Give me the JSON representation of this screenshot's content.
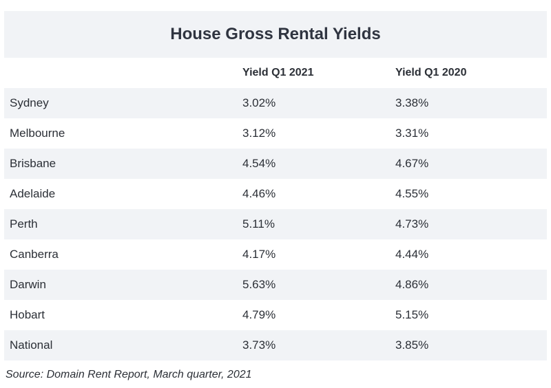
{
  "chart_data": {
    "type": "table",
    "title": "House Gross Rental Yields",
    "columns": [
      "",
      "Yield Q1 2021",
      "Yield Q1 2020"
    ],
    "rows": [
      {
        "city": "Sydney",
        "q1_2021": "3.02%",
        "q1_2020": "3.38%"
      },
      {
        "city": "Melbourne",
        "q1_2021": "3.12%",
        "q1_2020": "3.31%"
      },
      {
        "city": "Brisbane",
        "q1_2021": "4.54%",
        "q1_2020": "4.67%"
      },
      {
        "city": "Adelaide",
        "q1_2021": "4.46%",
        "q1_2020": "4.55%"
      },
      {
        "city": "Perth",
        "q1_2021": "5.11%",
        "q1_2020": "4.73%"
      },
      {
        "city": "Canberra",
        "q1_2021": "4.17%",
        "q1_2020": "4.44%"
      },
      {
        "city": "Darwin",
        "q1_2021": "5.63%",
        "q1_2020": "4.86%"
      },
      {
        "city": "Hobart",
        "q1_2021": "4.79%",
        "q1_2020": "5.15%"
      },
      {
        "city": "National",
        "q1_2021": "3.73%",
        "q1_2020": "3.85%"
      }
    ],
    "source": "Source: Domain Rent Report, March quarter, 2021"
  },
  "colors": {
    "stripe": "#f1f3f6",
    "text": "#2b2f36"
  }
}
